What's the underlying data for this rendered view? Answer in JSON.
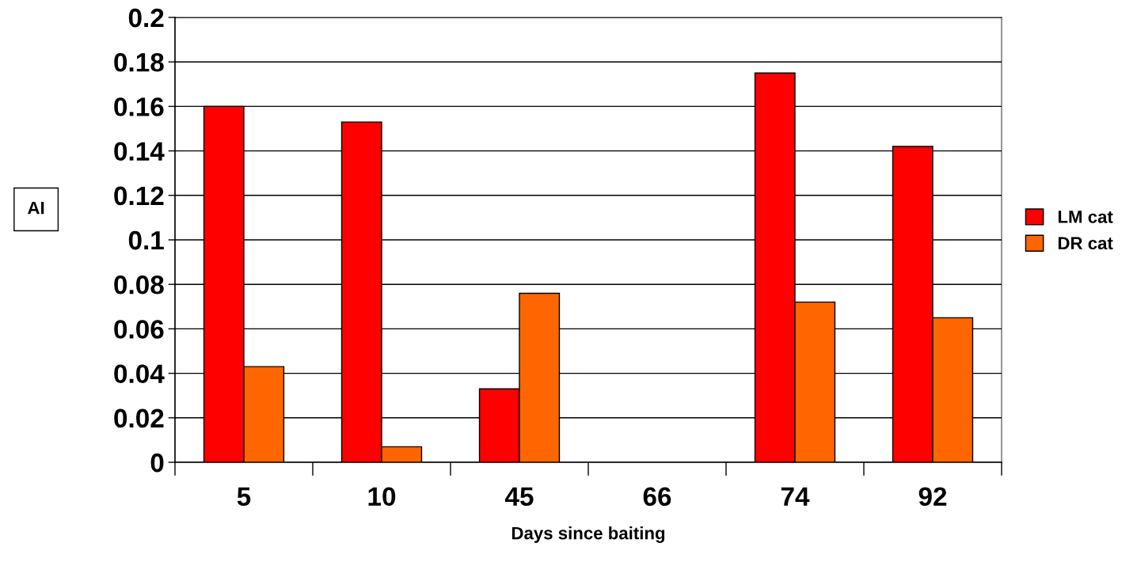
{
  "chart_data": {
    "type": "bar",
    "xlabel": "Days since baiting",
    "ylabel": "AI",
    "categories": [
      "5",
      "10",
      "45",
      "66",
      "74",
      "92"
    ],
    "series": [
      {
        "name": "LM cat",
        "color": "#ff0000",
        "values": [
          0.16,
          0.153,
          0.033,
          0,
          0.175,
          0.142
        ]
      },
      {
        "name": "DR cat",
        "color": "#ff6600",
        "values": [
          0.043,
          0.007,
          0.076,
          0,
          0.072,
          0.065
        ]
      }
    ],
    "ylim": [
      0,
      0.2
    ],
    "yticks": [
      {
        "value": 0,
        "label": "0"
      },
      0.02,
      0.04,
      0.06,
      0.08,
      {
        "value": 0.1,
        "label": "0.1"
      },
      0.12,
      0.14,
      0.16,
      0.18,
      {
        "value": 0.2,
        "label": "0.2"
      }
    ],
    "grid": "y",
    "legend": "right"
  }
}
